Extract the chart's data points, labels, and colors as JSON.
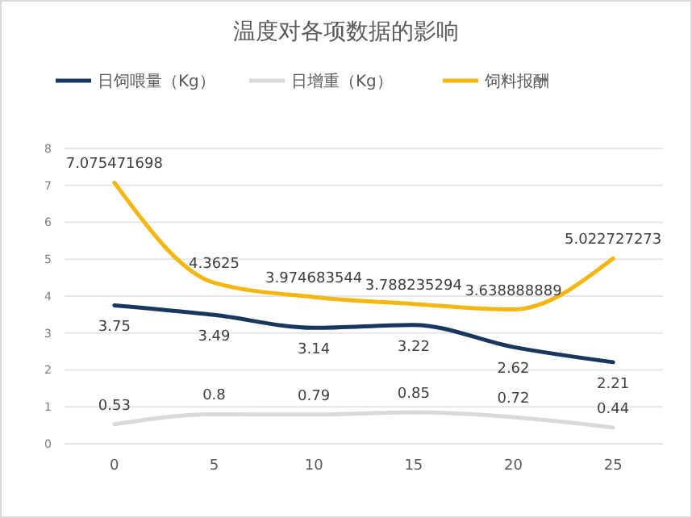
{
  "chart_data": {
    "type": "line",
    "title": "温度对各项数据的影响",
    "categories": [
      "0",
      "5",
      "10",
      "15",
      "20",
      "25"
    ],
    "series": [
      {
        "name": "日饲喂量（Kg）",
        "color": "#17375e",
        "values": [
          3.75,
          3.49,
          3.14,
          3.22,
          2.62,
          2.21
        ]
      },
      {
        "name": "日增重（Kg）",
        "color": "#d9d9d9",
        "values": [
          0.53,
          0.8,
          0.79,
          0.85,
          0.72,
          0.44
        ]
      },
      {
        "name": "饲料报酬",
        "color": "#f5b70f",
        "values": [
          7.075471698,
          4.3625,
          3.974683544,
          3.788235294,
          3.638888889,
          5.022727273
        ]
      }
    ],
    "ylim": [
      0,
      8
    ],
    "yticks": [
      0,
      1,
      2,
      3,
      4,
      5,
      6,
      7,
      8
    ],
    "grid": "y",
    "legend": "top",
    "data_labels": true,
    "marker": "none",
    "line_style": "solid"
  }
}
